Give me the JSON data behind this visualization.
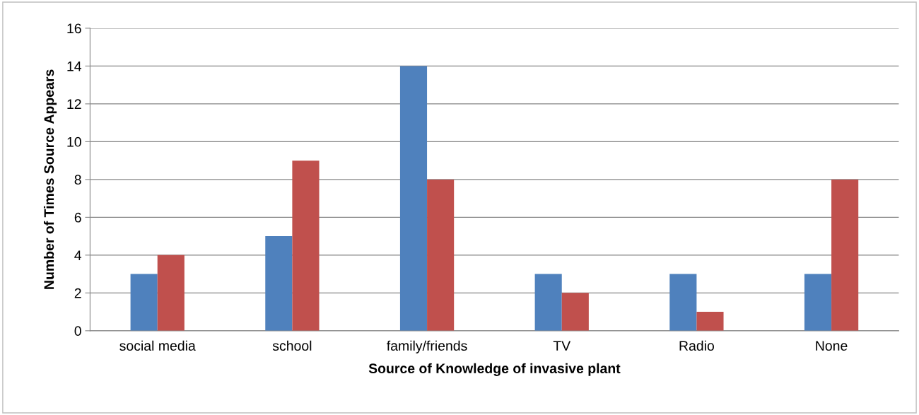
{
  "chart_data": {
    "type": "bar",
    "xlabel": "Source of Knowledge of invasive plant",
    "ylabel": "Number of Times Source Appears",
    "categories": [
      "social media",
      "school",
      "family/friends",
      "TV",
      "Radio",
      "None"
    ],
    "series": [
      {
        "color": "#4f81bd",
        "values": [
          3,
          5,
          14,
          3,
          3,
          3
        ]
      },
      {
        "color": "#c0504d",
        "values": [
          4,
          9,
          8,
          2,
          1,
          8
        ]
      }
    ],
    "ylim": [
      0,
      16
    ],
    "yticks": [
      0,
      2,
      4,
      6,
      8,
      10,
      12,
      14,
      16
    ],
    "grid": "y"
  }
}
